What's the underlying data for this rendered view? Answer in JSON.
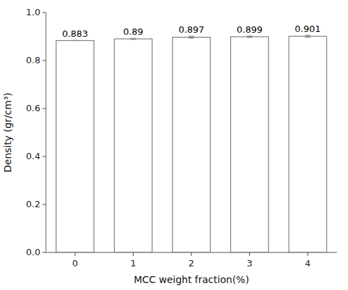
{
  "chart_data": {
    "type": "bar",
    "xlabel": "MCC weight fraction(%)",
    "ylabel": "Density (gr/cm³)",
    "categories": [
      "0",
      "1",
      "2",
      "3",
      "4"
    ],
    "values": [
      0.883,
      0.89,
      0.897,
      0.899,
      0.901
    ],
    "errors": [
      0.0,
      0.002,
      0.004,
      0.003,
      0.004
    ],
    "color": "#ffffff",
    "data_labels": true,
    "ylim": [
      0.0,
      1.0
    ],
    "yticks": [
      {
        "value": 0.0,
        "label": "0.0"
      },
      0.2,
      0.4,
      0.6,
      0.8,
      {
        "value": 1.0,
        "label": "1.0"
      }
    ],
    "grid": false
  }
}
